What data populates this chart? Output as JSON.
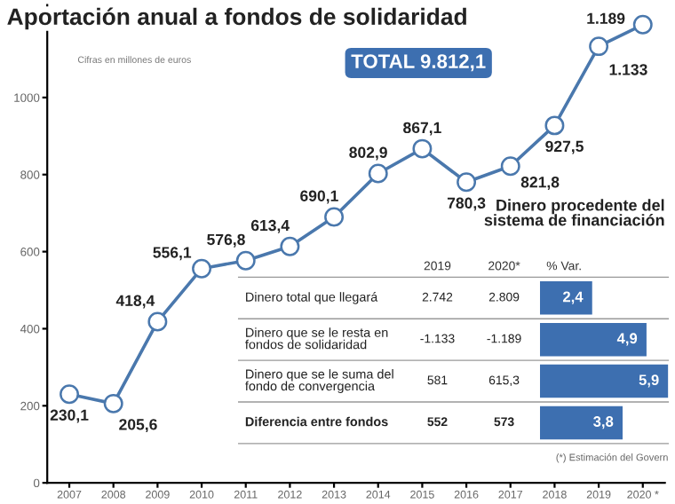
{
  "chart_data": [
    {
      "type": "line",
      "title": "Aportación anual a fondos de solidaridad",
      "categories": [
        "2007",
        "2008",
        "2009",
        "2010",
        "2011",
        "2012",
        "2013",
        "2014",
        "2015",
        "2016",
        "2017",
        "2018",
        "2019",
        "2020 *"
      ],
      "series": [
        {
          "color": "#4a78ad",
          "values": [
            230.1,
            205.6,
            418.4,
            556.1,
            576.8,
            613.4,
            690.1,
            802.9,
            867.1,
            780.3,
            821.8,
            927.5,
            1133,
            1189
          ],
          "value_labels": [
            "230,1",
            "205,6",
            "418,4",
            "556,1",
            "576,8",
            "613,4",
            "690,1",
            "802,9",
            "867,1",
            "780,3",
            "821,8",
            "927,5",
            "1.133",
            "1.189"
          ]
        }
      ],
      "marker": "circle",
      "ylim": [
        0,
        1240
      ],
      "yticks": [
        0,
        200,
        400,
        600,
        800,
        1000
      ],
      "grid": false,
      "annotations": [
        "Cifras en millones de euros",
        "TOTAL 9.812,1"
      ]
    },
    {
      "type": "bar",
      "orientation": "horizontal",
      "title": "Dinero procedente del sistema de financiación",
      "categories": [
        "Dinero total que llegará",
        "Dinero que se le resta en fondos de solidaridad",
        "Dinero que se le suma del fondo de convergencia",
        "Diferencia entre fondos"
      ],
      "values": [
        2.4,
        4.9,
        5.9,
        3.8
      ],
      "value_labels": [
        "2,4",
        "4,9",
        "5,9",
        "3,8"
      ],
      "color": "#3d6fb0",
      "annotations": [
        "2019",
        "2020*",
        "% Var.",
        "2.742",
        "2.809",
        "-1.133",
        "-1.189",
        "581",
        "615,3",
        "552",
        "573",
        "(*) Estimación del Govern"
      ]
    }
  ]
}
